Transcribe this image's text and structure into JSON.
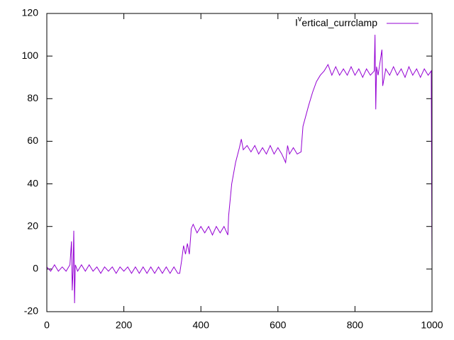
{
  "chart_data": {
    "type": "line",
    "x": [
      0,
      10,
      20,
      30,
      40,
      50,
      60,
      64,
      66,
      68,
      70,
      72,
      74,
      80,
      90,
      100,
      110,
      120,
      130,
      140,
      150,
      160,
      170,
      180,
      190,
      200,
      210,
      220,
      230,
      240,
      250,
      260,
      270,
      280,
      290,
      300,
      310,
      320,
      330,
      340,
      345,
      350,
      355,
      360,
      365,
      370,
      375,
      380,
      390,
      400,
      410,
      420,
      430,
      440,
      450,
      460,
      470,
      472,
      480,
      490,
      500,
      505,
      510,
      520,
      530,
      540,
      550,
      560,
      570,
      580,
      590,
      600,
      610,
      620,
      625,
      630,
      640,
      650,
      660,
      665,
      680,
      690,
      700,
      710,
      720,
      730,
      740,
      750,
      760,
      770,
      780,
      790,
      800,
      810,
      820,
      830,
      840,
      850,
      852,
      854,
      856,
      860,
      870,
      872,
      880,
      890,
      900,
      910,
      920,
      930,
      940,
      950,
      960,
      970,
      980,
      990,
      998,
      1000
    ],
    "series": [
      {
        "name": "Ivertical_currclamp",
        "color": "#9400d3",
        "values": [
          1,
          -1,
          2,
          -1,
          1,
          -1,
          2,
          13,
          -10,
          -1,
          18,
          -16,
          2,
          -1,
          2,
          -1,
          2,
          -1,
          1,
          -2,
          1,
          -1,
          1,
          -2,
          1,
          -1,
          1,
          -2,
          1,
          -2,
          1,
          -2,
          1,
          -2,
          1,
          -2,
          1,
          -2,
          1,
          -2,
          -2,
          4,
          11,
          7,
          12,
          7,
          19,
          21,
          17,
          20,
          17,
          20,
          16,
          20,
          17,
          20,
          16,
          25,
          40,
          50,
          57,
          61,
          56,
          58,
          55,
          58,
          54,
          57,
          54,
          58,
          54,
          57,
          54,
          50,
          58,
          54,
          57,
          54,
          55,
          67,
          77,
          83,
          88,
          91,
          93,
          96,
          91,
          95,
          91,
          94,
          91,
          95,
          91,
          94,
          90,
          94,
          91,
          93,
          110,
          75,
          95,
          91,
          103,
          86,
          94,
          91,
          95,
          91,
          94,
          90,
          95,
          91,
          94,
          90,
          94,
          91,
          93,
          0
        ]
      }
    ],
    "xlim": [
      0,
      1000
    ],
    "xticks": [
      0,
      200,
      400,
      600,
      800,
      1000
    ],
    "ylim": [
      -20,
      120
    ],
    "yticks": [
      -20,
      0,
      20,
      40,
      60,
      80,
      100,
      120
    ],
    "grid": false,
    "legend": "top-right"
  }
}
